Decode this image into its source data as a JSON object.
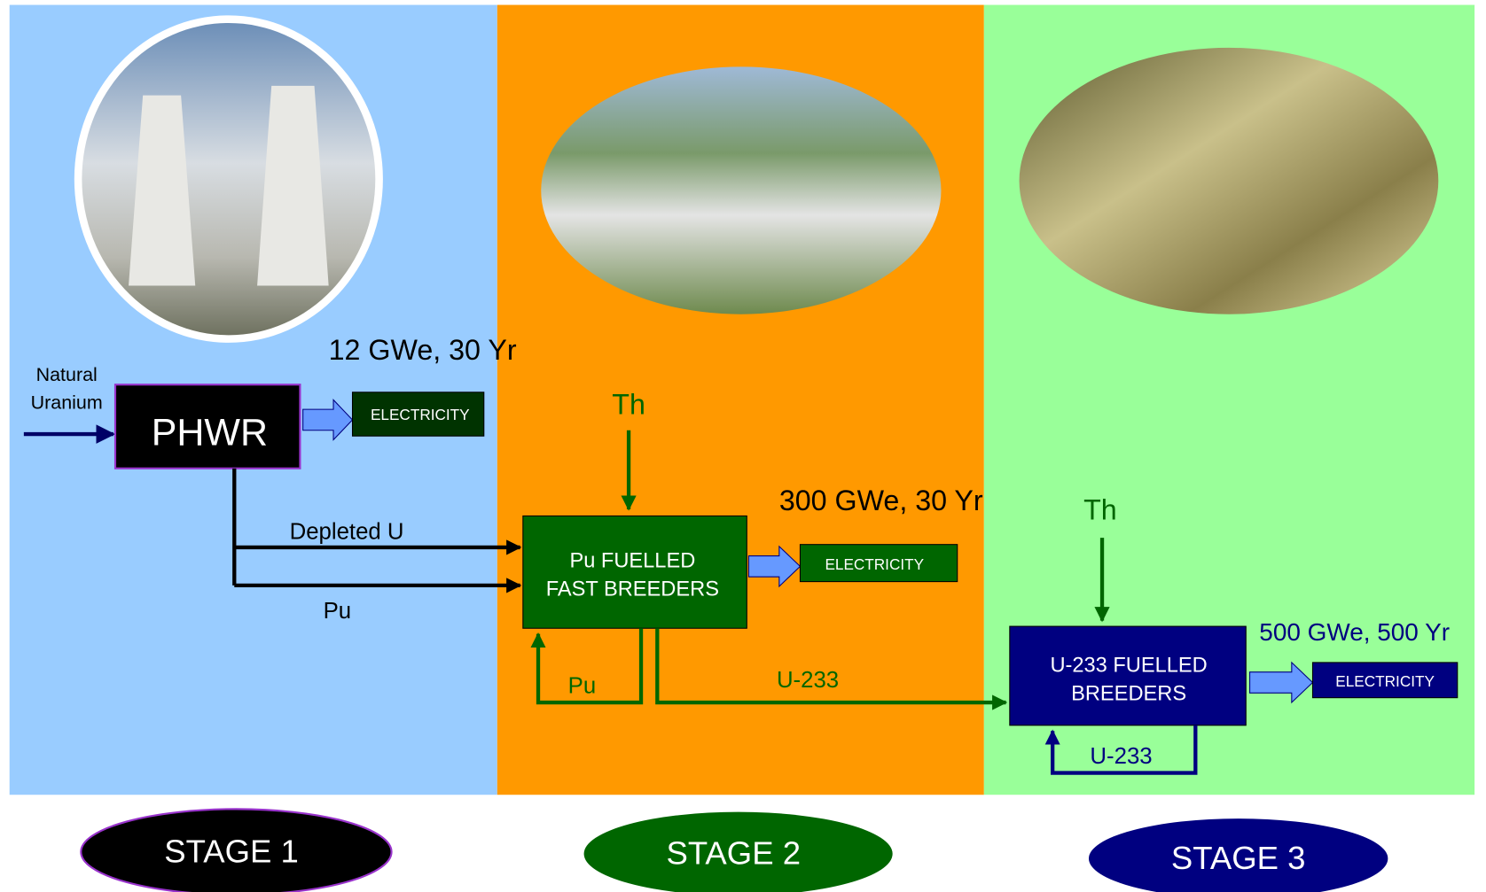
{
  "stages": [
    {
      "label": "STAGE 1",
      "output": "12 GWe, 30 Yr",
      "reactor": [
        "PHWR"
      ],
      "product": "ELECTRICITY",
      "input": [
        "Natural",
        "Uranium"
      ]
    },
    {
      "label": "STAGE 2",
      "output": "300 GWe, 30 Yr",
      "reactor": [
        "Pu FUELLED",
        "FAST BREEDERS"
      ],
      "product": "ELECTRICITY",
      "input": "Th"
    },
    {
      "label": "STAGE 3",
      "output": "500 GWe, 500 Yr",
      "reactor": [
        "U-233 FUELLED",
        "BREEDERS"
      ],
      "product": "ELECTRICITY",
      "input": "Th"
    }
  ],
  "flows": {
    "depleted_u": "Depleted U",
    "pu": "Pu",
    "pu_recycle": "Pu",
    "u233": "U-233",
    "u233_recycle": "U-233"
  }
}
